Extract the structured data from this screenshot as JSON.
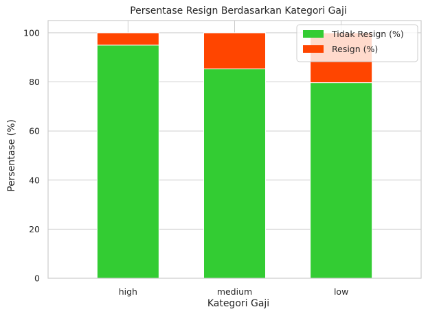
{
  "chart_data": {
    "type": "bar",
    "stacked": true,
    "title": "Persentase Resign Berdasarkan Kategori Gaji",
    "xlabel": "Kategori Gaji",
    "ylabel": "Persentase (%)",
    "categories": [
      "high",
      "medium",
      "low"
    ],
    "series": [
      {
        "name": "Tidak Resign (%)",
        "values": [
          95.0,
          85.3,
          79.7
        ],
        "color": "#33cc33"
      },
      {
        "name": "Resign (%)",
        "values": [
          5.0,
          14.7,
          20.3
        ],
        "color": "#ff4500"
      }
    ],
    "ylim": [
      0,
      105
    ],
    "yticks": [
      0,
      20,
      40,
      60,
      80,
      100
    ],
    "grid": true,
    "legend_position": "top-right"
  }
}
